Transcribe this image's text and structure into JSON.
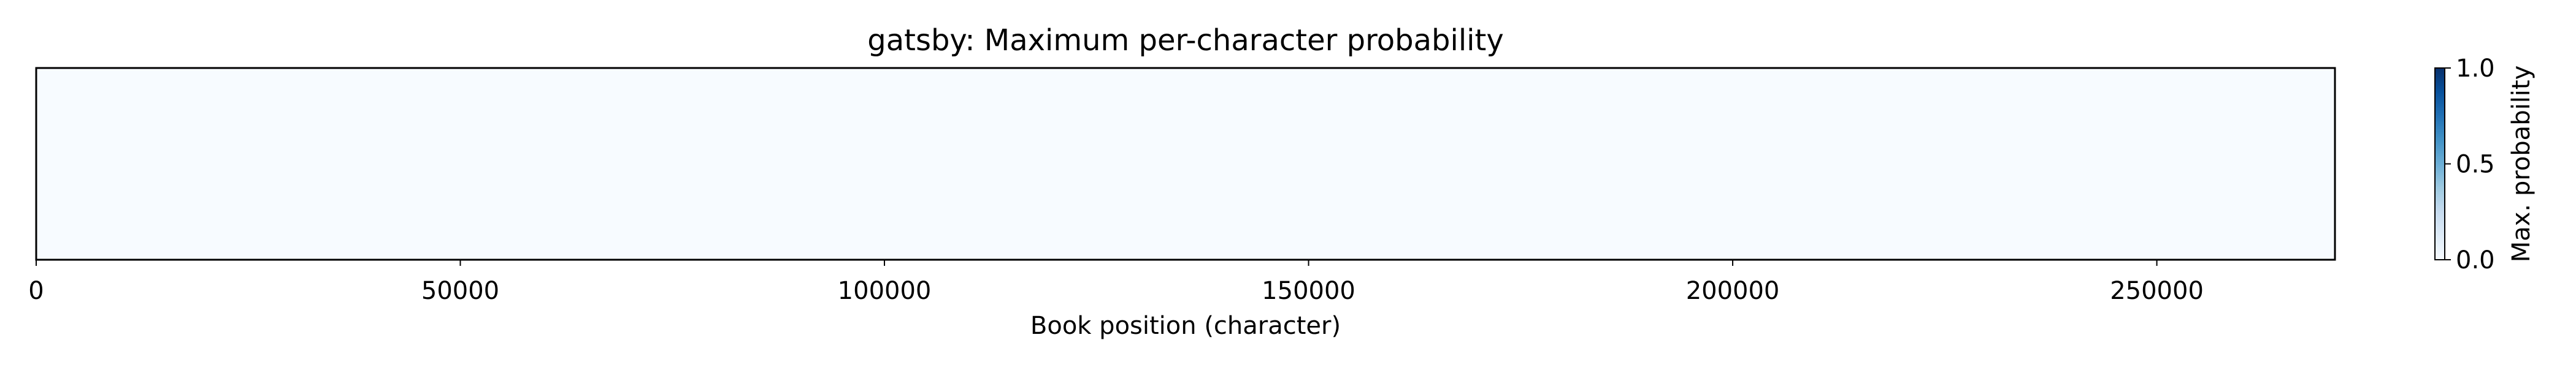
{
  "chart_data": {
    "type": "heatmap",
    "title": "gatsby: Maximum per-character probability",
    "xlabel": "Book position (character)",
    "ylabel": "",
    "xlim": [
      0,
      271000
    ],
    "x_ticks": [
      0,
      50000,
      100000,
      150000,
      200000,
      250000
    ],
    "x_tick_labels": [
      "0",
      "50000",
      "100000",
      "150000",
      "200000",
      "250000"
    ],
    "values_description_value": 0.0,
    "fill_color": "#f7fbff",
    "colorbar": {
      "label": "Max. probability",
      "colormap": "Blues",
      "range": [
        0.0,
        1.0
      ],
      "ticks": [
        0.0,
        0.5,
        1.0
      ],
      "tick_labels": [
        "0.0",
        "0.5",
        "1.0"
      ],
      "colors": [
        "#f7fbff",
        "#deebf7",
        "#c6dbef",
        "#9ecae1",
        "#6baed6",
        "#4292c6",
        "#2171b5",
        "#08519c",
        "#08306b"
      ]
    },
    "grid": false
  }
}
